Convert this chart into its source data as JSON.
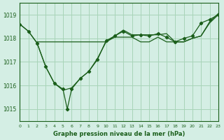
{
  "title": "Graphe pression niveau de la mer (hPa)",
  "bg_color": "#d4eee4",
  "line_color": "#1a5e1a",
  "grid_color": "#a8d4b8",
  "xlim": [
    0,
    23
  ],
  "ylim": [
    1014.5,
    1019.5
  ],
  "yticks": [
    1015,
    1016,
    1017,
    1018,
    1019
  ],
  "xticks": [
    0,
    1,
    2,
    3,
    4,
    5,
    6,
    7,
    8,
    9,
    10,
    11,
    12,
    13,
    14,
    15,
    16,
    17,
    18,
    19,
    20,
    21,
    22,
    23
  ],
  "series1": {
    "x": [
      0,
      1,
      2,
      3,
      4,
      5,
      5.5,
      6,
      7,
      8,
      9,
      10,
      11,
      12,
      13,
      14,
      15,
      16,
      17,
      18,
      19,
      20,
      21,
      22,
      23
    ],
    "y": [
      1018.6,
      1018.3,
      1017.8,
      1016.8,
      1016.1,
      1015.85,
      1015.0,
      1015.85,
      1016.3,
      1016.6,
      1017.1,
      1017.9,
      1018.1,
      1018.3,
      1018.1,
      1018.15,
      1018.1,
      1018.2,
      1018.05,
      1017.85,
      1018.0,
      1018.1,
      1018.65,
      1018.8,
      1019.0
    ]
  },
  "series2": {
    "x": [
      2,
      3,
      4,
      5,
      6,
      7,
      8,
      9,
      10,
      11,
      12,
      13,
      14,
      15,
      16,
      17,
      18,
      19,
      20,
      21,
      22,
      23
    ],
    "y": [
      1017.85,
      1017.85,
      1017.85,
      1017.85,
      1017.85,
      1017.85,
      1017.85,
      1017.85,
      1017.85,
      1018.05,
      1018.05,
      1018.05,
      1017.85,
      1017.85,
      1018.05,
      1017.85,
      1017.85,
      1017.85,
      1018.0,
      1018.1,
      1018.7,
      1019.05
    ]
  },
  "series3": {
    "x": [
      0,
      1,
      2,
      3,
      4,
      5,
      6,
      7,
      8,
      9,
      10,
      11,
      12,
      13,
      14,
      15,
      16,
      17,
      18,
      19,
      20,
      21,
      22,
      23
    ],
    "y": [
      1018.6,
      1018.3,
      1017.8,
      1016.8,
      1016.1,
      1015.8,
      1015.9,
      1016.3,
      1016.6,
      1017.15,
      1017.85,
      1018.1,
      1018.35,
      1018.15,
      1018.15,
      1018.15,
      1018.15,
      1018.2,
      1017.85,
      1017.85,
      1018.0,
      1018.1,
      1018.65,
      1019.0
    ]
  }
}
